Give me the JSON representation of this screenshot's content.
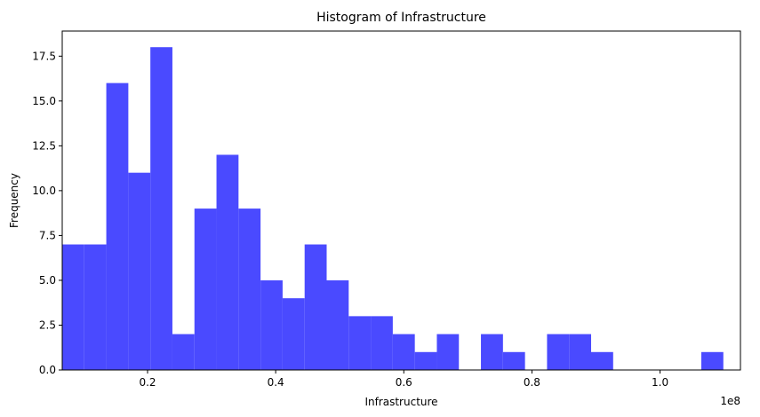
{
  "chart_data": {
    "type": "bar",
    "title": "Histogram of Infrastructure",
    "xlabel": "Infrastructure",
    "ylabel": "Frequency",
    "x_offset_label": "1e8",
    "xlim": [
      0.0668,
      1.1255
    ],
    "ylim": [
      0,
      18.9
    ],
    "xticks": [
      0.2,
      0.4,
      0.6,
      0.8,
      1.0
    ],
    "xtick_labels": [
      "0.2",
      "0.4",
      "0.6",
      "0.8",
      "1.0"
    ],
    "yticks": [
      0.0,
      2.5,
      5.0,
      7.5,
      10.0,
      12.5,
      15.0,
      17.5
    ],
    "ytick_labels": [
      "0.0",
      "2.5",
      "5.0",
      "7.5",
      "10.0",
      "12.5",
      "15.0",
      "17.5"
    ],
    "bin_start": 0.0668,
    "bin_width": 0.0344,
    "values": [
      7,
      7,
      16,
      11,
      18,
      2,
      9,
      12,
      9,
      5,
      4,
      7,
      5,
      3,
      3,
      2,
      1,
      2,
      0,
      2,
      1,
      0,
      2,
      2,
      1,
      0,
      0,
      0,
      0,
      1
    ],
    "bar_color": "#4a4aff",
    "grid": false,
    "legend": false
  }
}
